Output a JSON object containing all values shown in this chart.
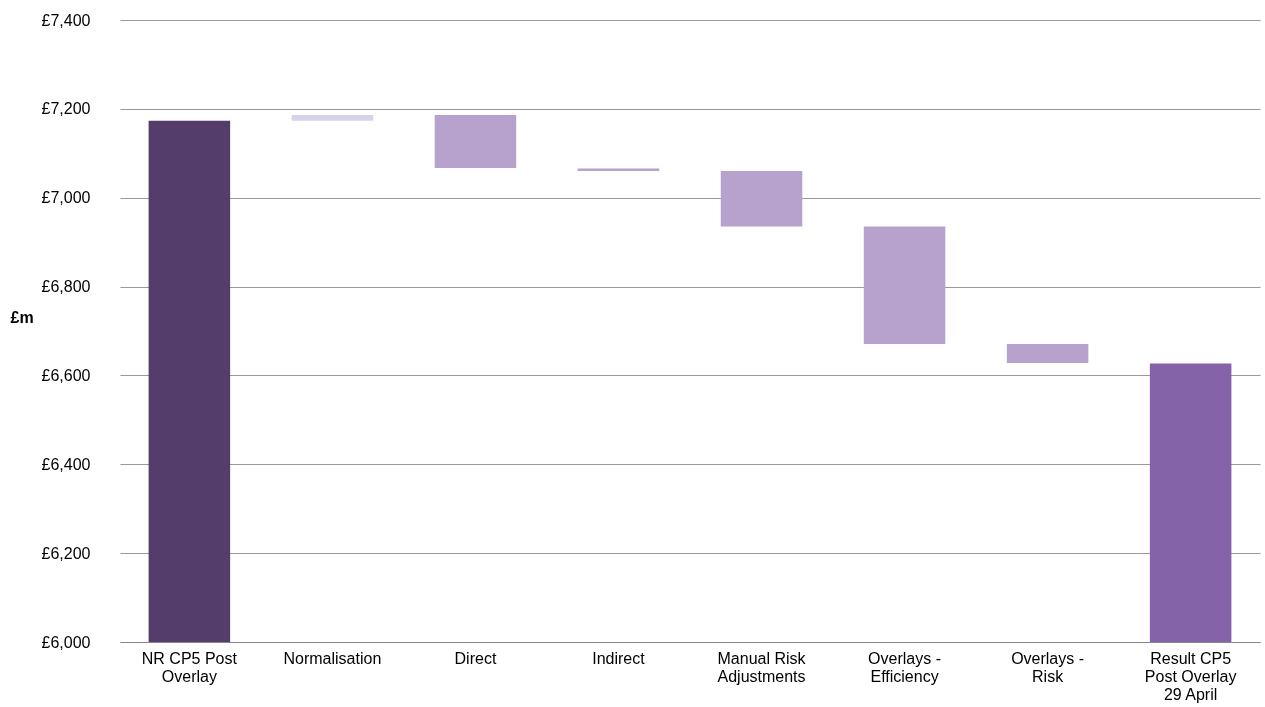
{
  "chart_data": {
    "type": "bar",
    "ylabel": "£m",
    "categories": [
      "NR CP5 Post Overlay",
      "Normalisation",
      "Direct",
      "Indirect",
      "Manual Risk Adjustments",
      "Overlays - Efficiency",
      "Overlays - Risk",
      "Result CP5 Post Overlay 29 April"
    ],
    "values": [
      7173,
      13,
      -119,
      -6,
      -125,
      -264,
      -43,
      6627
    ],
    "base": [
      null,
      7173,
      7186,
      7066,
      7060,
      6935,
      6671,
      null
    ],
    "colors": [
      "#553d6b",
      "#d5d3ea",
      "#b6a2cc",
      "#b6a2cc",
      "#b6a2cc",
      "#b6a2cc",
      "#b6a2cc",
      "#8563a8"
    ],
    "ylim": [
      6000,
      7400
    ],
    "yticks": [
      {
        "value": 6000,
        "label": "£6,000"
      },
      {
        "value": 6200,
        "label": "£6,200"
      },
      {
        "value": 6400,
        "label": "£6,400"
      },
      {
        "value": 6600,
        "label": "£6,600"
      },
      {
        "value": 6800,
        "label": "£6,800"
      },
      {
        "value": 7000,
        "label": "£7,000"
      },
      {
        "value": 7200,
        "label": "£7,200"
      },
      {
        "value": 7400,
        "label": "£7,400"
      }
    ],
    "grid": "y"
  }
}
